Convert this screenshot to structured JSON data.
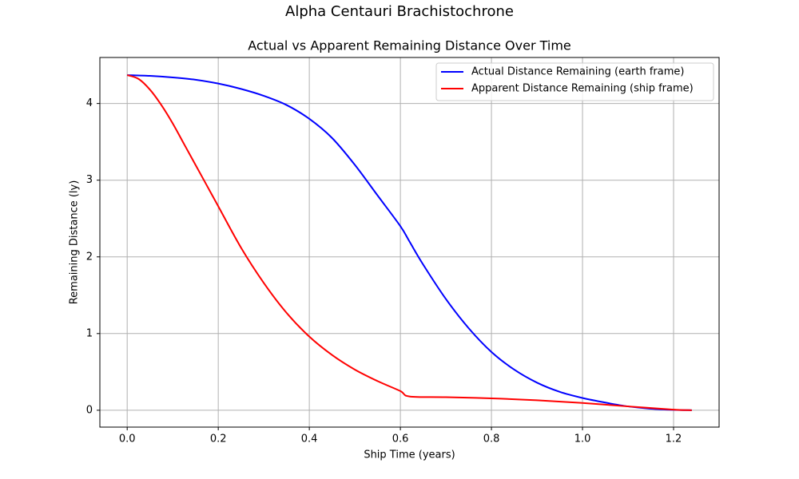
{
  "figure": {
    "suptitle": "Alpha Centauri Brachistochrone"
  },
  "chart_data": {
    "type": "line",
    "title": "Actual vs Apparent Remaining Distance Over Time",
    "xlabel": "Ship Time (years)",
    "ylabel": "Remaining Distance (ly)",
    "xlim": [
      -0.06,
      1.3
    ],
    "ylim": [
      -0.22,
      4.6
    ],
    "xticks": [
      0.0,
      0.2,
      0.4,
      0.6,
      0.8,
      1.0,
      1.2
    ],
    "xtick_labels": [
      "0.0",
      "0.2",
      "0.4",
      "0.6",
      "0.8",
      "1.0",
      "1.2"
    ],
    "yticks": [
      0,
      1,
      2,
      3,
      4
    ],
    "ytick_labels": [
      "0",
      "1",
      "2",
      "3",
      "4"
    ],
    "grid": true,
    "legend_position": "top-right",
    "series": [
      {
        "name": "Actual Distance Remaining (earth frame)",
        "color": "#0000ff",
        "x": [
          0.0,
          0.05,
          0.1,
          0.15,
          0.2,
          0.25,
          0.3,
          0.35,
          0.4,
          0.45,
          0.5,
          0.55,
          0.6,
          0.62,
          0.65,
          0.7,
          0.75,
          0.8,
          0.85,
          0.9,
          0.95,
          1.0,
          1.05,
          1.1,
          1.15,
          1.2,
          1.24
        ],
        "y": [
          4.37,
          4.36,
          4.34,
          4.31,
          4.26,
          4.19,
          4.1,
          3.98,
          3.8,
          3.55,
          3.2,
          2.8,
          2.4,
          2.2,
          1.9,
          1.45,
          1.07,
          0.76,
          0.53,
          0.36,
          0.24,
          0.16,
          0.1,
          0.05,
          0.02,
          0.005,
          0.0
        ]
      },
      {
        "name": "Apparent Distance Remaining (ship frame)",
        "color": "#ff0000",
        "x": [
          0.0,
          0.025,
          0.05,
          0.075,
          0.1,
          0.125,
          0.15,
          0.175,
          0.2,
          0.25,
          0.3,
          0.35,
          0.4,
          0.45,
          0.5,
          0.55,
          0.6,
          0.62,
          0.7,
          0.8,
          0.9,
          1.0,
          1.1,
          1.2,
          1.24
        ],
        "y": [
          4.37,
          4.32,
          4.18,
          3.98,
          3.74,
          3.47,
          3.2,
          2.93,
          2.66,
          2.12,
          1.66,
          1.27,
          0.96,
          0.72,
          0.53,
          0.38,
          0.25,
          0.18,
          0.17,
          0.155,
          0.13,
          0.095,
          0.05,
          0.008,
          0.0
        ]
      }
    ]
  }
}
